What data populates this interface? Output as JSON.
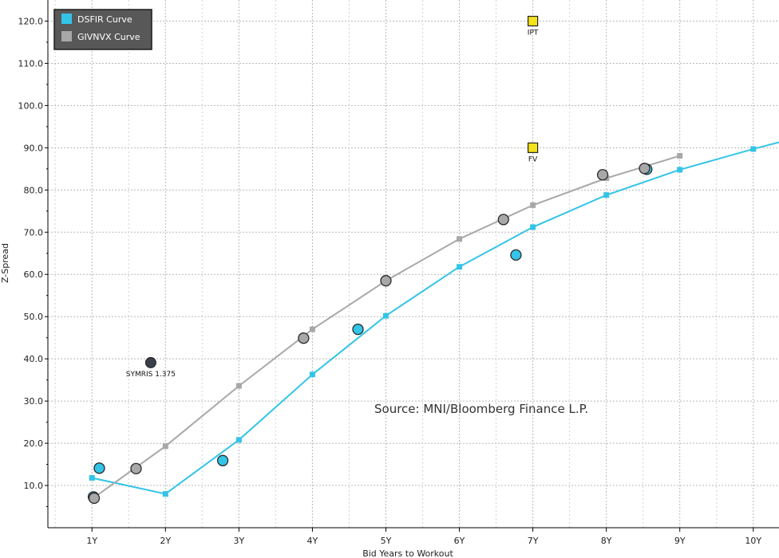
{
  "chart_data": {
    "type": "scatter",
    "xlabel": "Bid Years to Workout",
    "ylabel": "Z-Spread",
    "xlim": [
      0.4,
      10.35
    ],
    "ylim": [
      0,
      125
    ],
    "grid": true,
    "legend_position": "top-left",
    "x_ticks": [
      {
        "value": 1,
        "label": "1Y"
      },
      {
        "value": 2,
        "label": "2Y"
      },
      {
        "value": 3,
        "label": "3Y"
      },
      {
        "value": 4,
        "label": "4Y"
      },
      {
        "value": 5,
        "label": "5Y"
      },
      {
        "value": 6,
        "label": "6Y"
      },
      {
        "value": 7,
        "label": "7Y"
      },
      {
        "value": 8,
        "label": "8Y"
      },
      {
        "value": 9,
        "label": "9Y"
      },
      {
        "value": 10,
        "label": "10Y"
      }
    ],
    "y_ticks": [
      {
        "value": 10,
        "label": "10.0"
      },
      {
        "value": 20,
        "label": "20.0"
      },
      {
        "value": 30,
        "label": "30.0"
      },
      {
        "value": 40,
        "label": "40.0"
      },
      {
        "value": 50,
        "label": "50.0"
      },
      {
        "value": 60,
        "label": "60.0"
      },
      {
        "value": 70,
        "label": "70.0"
      },
      {
        "value": 80,
        "label": "80.0"
      },
      {
        "value": 90,
        "label": "90.0"
      },
      {
        "value": 100,
        "label": "100.0"
      },
      {
        "value": 110,
        "label": "110.0"
      },
      {
        "value": 120,
        "label": "120.0"
      }
    ],
    "curves": [
      {
        "name": "DSFIR Curve",
        "color": "#33c4e8",
        "x": [
          1,
          2,
          3,
          4,
          5,
          6,
          7,
          8,
          9,
          10,
          10.35
        ],
        "y": [
          11.8,
          8.0,
          20.8,
          36.3,
          50.2,
          61.8,
          71.2,
          78.8,
          84.8,
          89.7,
          91.3
        ]
      },
      {
        "name": "GIVNVX Curve",
        "color": "#a8a8a8",
        "x": [
          1,
          2,
          3,
          4,
          5,
          6,
          7,
          8,
          9
        ],
        "y": [
          6.8,
          19.3,
          33.6,
          47.0,
          58.5,
          68.4,
          76.4,
          82.8,
          88.1
        ]
      }
    ],
    "bond_points": [
      {
        "series": "DSFIR",
        "x": 1.02,
        "y": 7.3,
        "color": "#33c4e8"
      },
      {
        "series": "DSFIR",
        "x": 1.1,
        "y": 14.1,
        "color": "#33c4e8"
      },
      {
        "series": "DSFIR",
        "x": 2.78,
        "y": 15.9,
        "color": "#33c4e8"
      },
      {
        "series": "DSFIR",
        "x": 4.62,
        "y": 47.0,
        "color": "#33c4e8"
      },
      {
        "series": "DSFIR",
        "x": 6.77,
        "y": 64.6,
        "color": "#33c4e8"
      },
      {
        "series": "DSFIR",
        "x": 8.55,
        "y": 84.9,
        "color": "#33c4e8"
      },
      {
        "series": "GIVNVX",
        "x": 1.03,
        "y": 7.0,
        "color": "#a8a8a8"
      },
      {
        "series": "GIVNVX",
        "x": 1.6,
        "y": 14.0,
        "color": "#a8a8a8"
      },
      {
        "series": "GIVNVX",
        "x": 3.88,
        "y": 44.9,
        "color": "#a8a8a8"
      },
      {
        "series": "GIVNVX",
        "x": 5.0,
        "y": 58.5,
        "color": "#a8a8a8"
      },
      {
        "series": "GIVNVX",
        "x": 6.6,
        "y": 73.0,
        "color": "#a8a8a8"
      },
      {
        "series": "GIVNVX",
        "x": 7.95,
        "y": 83.6,
        "color": "#a8a8a8"
      },
      {
        "series": "GIVNVX",
        "x": 8.52,
        "y": 85.1,
        "color": "#a8a8a8"
      }
    ],
    "annotations": [
      {
        "label": "SYMRIS 1.375",
        "x": 1.8,
        "y": 39.1,
        "marker": "circle",
        "color": "#3a3f4a"
      },
      {
        "label": "IPT",
        "x": 7.0,
        "y": 120.0,
        "marker": "square",
        "color": "#f4e21a"
      },
      {
        "label": "FV",
        "x": 7.0,
        "y": 90.0,
        "marker": "square",
        "color": "#f4e21a"
      }
    ],
    "source_note": "Source: MNI/Bloomberg Finance L.P."
  },
  "legend": {
    "items": [
      {
        "label": "DSFIR Curve",
        "color": "#33c4e8"
      },
      {
        "label": "GIVNVX Curve",
        "color": "#a8a8a8"
      }
    ]
  },
  "colors": {
    "grid": "#b8b8b8",
    "axis": "#000000",
    "legend_bg": "#585858",
    "legend_border": "#1a1a1a",
    "marker_stroke": "#2a2a2a"
  }
}
